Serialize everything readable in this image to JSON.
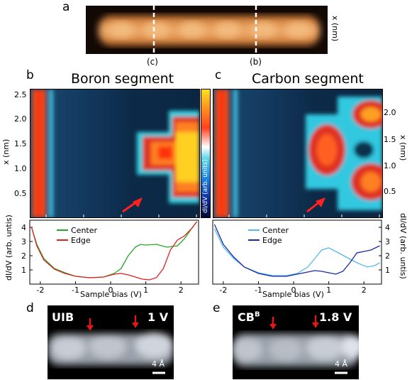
{
  "panels": {
    "a": "a",
    "b": "b",
    "c": "c",
    "d": "d",
    "e": "e"
  },
  "panel_a": {
    "ylabel": "x (nm)",
    "markers": [
      "(c)",
      "(b)"
    ]
  },
  "boron": {
    "title": "Boron segment",
    "map_ylabel": "x (nm)",
    "map_yticks": [
      "2.5",
      "2.0",
      "1.5",
      "1.0",
      "0.5"
    ]
  },
  "carbon": {
    "title": "Carbon segment",
    "map_ylabel": "x (nm)",
    "map_yticks": [
      "2.0",
      "1.5",
      "1.0",
      "0.5"
    ]
  },
  "colorbar_label": "dI/dV (arb. units)",
  "chart_data": [
    {
      "type": "line",
      "panel": "b",
      "xlabel": "Sample bias (V)",
      "ylabel": "dI/dV (arb. untis)",
      "xlim": [
        -2.3,
        2.5
      ],
      "ylim": [
        0,
        4.5
      ],
      "xticks": [
        "-2",
        "-1",
        "0",
        "1",
        "2"
      ],
      "yticks": [
        "1",
        "2",
        "3",
        "4"
      ],
      "legend_position": "top-left",
      "series": [
        {
          "name": "Center",
          "color": "#22aa22",
          "x": [
            -2.25,
            -2.1,
            -1.9,
            -1.6,
            -1.3,
            -1.0,
            -0.6,
            -0.2,
            0.1,
            0.3,
            0.5,
            0.7,
            0.85,
            1.0,
            1.3,
            1.6,
            1.9,
            2.1,
            2.3,
            2.45
          ],
          "y": [
            4.0,
            2.8,
            1.8,
            1.1,
            0.8,
            0.55,
            0.45,
            0.5,
            0.75,
            1.1,
            2.0,
            2.6,
            2.8,
            2.75,
            2.8,
            2.6,
            2.7,
            3.2,
            3.9,
            4.4
          ]
        },
        {
          "name": "Edge",
          "color": "#e02020",
          "x": [
            -2.25,
            -2.1,
            -1.9,
            -1.6,
            -1.3,
            -1.0,
            -0.6,
            -0.2,
            0.1,
            0.3,
            0.5,
            0.7,
            0.9,
            1.1,
            1.3,
            1.5,
            1.7,
            1.9,
            2.1,
            2.3,
            2.45
          ],
          "y": [
            4.0,
            2.7,
            1.7,
            1.05,
            0.75,
            0.55,
            0.45,
            0.5,
            0.7,
            0.75,
            0.65,
            0.5,
            0.35,
            0.3,
            0.45,
            1.1,
            2.4,
            3.1,
            3.4,
            3.9,
            4.4
          ]
        }
      ]
    },
    {
      "type": "line",
      "panel": "c",
      "xlabel": "Sample bias (V)",
      "ylabel": "dI/dV (arb. untis)",
      "xlim": [
        -2.3,
        2.5
      ],
      "ylim": [
        0,
        4.5
      ],
      "xticks": [
        "-2",
        "-1",
        "0",
        "1",
        "2"
      ],
      "yticks": [
        "1",
        "2",
        "3",
        "4"
      ],
      "legend_position": "top-center",
      "series": [
        {
          "name": "Center",
          "color": "#55bbee",
          "x": [
            -2.25,
            -2.0,
            -1.7,
            -1.4,
            -1.0,
            -0.6,
            -0.2,
            0.1,
            0.4,
            0.6,
            0.8,
            1.0,
            1.2,
            1.5,
            1.8,
            2.1,
            2.3,
            2.45
          ],
          "y": [
            3.9,
            2.6,
            1.8,
            1.2,
            0.8,
            0.6,
            0.6,
            0.75,
            1.2,
            1.8,
            2.4,
            2.55,
            2.3,
            1.9,
            1.5,
            1.2,
            1.3,
            1.5
          ]
        },
        {
          "name": "Edge",
          "color": "#1a2aa8",
          "x": [
            -2.25,
            -2.0,
            -1.7,
            -1.4,
            -1.0,
            -0.6,
            -0.2,
            0.1,
            0.4,
            0.6,
            0.8,
            1.0,
            1.2,
            1.4,
            1.6,
            1.8,
            2.0,
            2.2,
            2.45
          ],
          "y": [
            4.2,
            2.8,
            1.9,
            1.2,
            0.75,
            0.55,
            0.55,
            0.7,
            0.85,
            0.95,
            0.9,
            0.8,
            0.7,
            0.9,
            1.5,
            2.2,
            2.3,
            2.4,
            2.7
          ]
        }
      ]
    }
  ],
  "panel_d": {
    "label": "UIB",
    "bias": "1 V",
    "scale": "4 Å"
  },
  "panel_e": {
    "label_main": "CB",
    "label_sup": "B",
    "bias": "1.8 V",
    "scale": "4 Å"
  }
}
